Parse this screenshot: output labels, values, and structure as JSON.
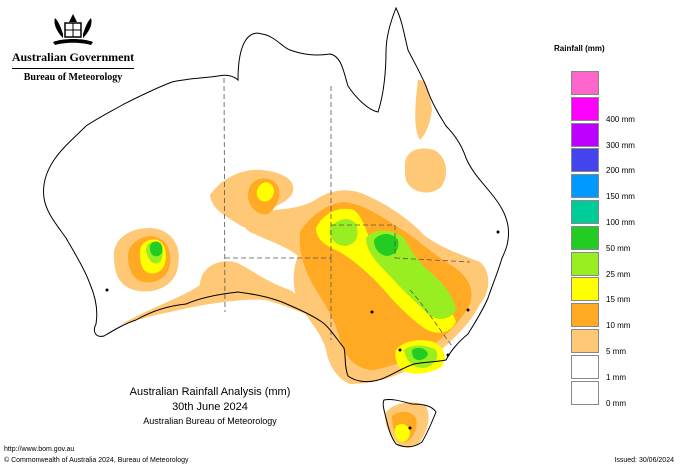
{
  "header": {
    "government": "Australian Government",
    "bureau": "Bureau of Meteorology"
  },
  "legend": {
    "title": "Rainfall (mm)",
    "items": [
      {
        "label": "",
        "color": "#ff66cc"
      },
      {
        "label": "400 mm",
        "color": "#ff00ff"
      },
      {
        "label": "300 mm",
        "color": "#bb00ff"
      },
      {
        "label": "200 mm",
        "color": "#4444ee"
      },
      {
        "label": "150 mm",
        "color": "#0099ff"
      },
      {
        "label": "100 mm",
        "color": "#00cc99"
      },
      {
        "label": "50 mm",
        "color": "#22cc22"
      },
      {
        "label": "25 mm",
        "color": "#99ee22"
      },
      {
        "label": "15 mm",
        "color": "#ffff00"
      },
      {
        "label": "10 mm",
        "color": "#ffaa22"
      },
      {
        "label": "5 mm",
        "color": "#ffc877"
      },
      {
        "label": "1 mm",
        "color": "#ffffff"
      },
      {
        "label": "0 mm",
        "color": "#ffffff"
      }
    ]
  },
  "caption": {
    "title": "Australian Rainfall Analysis (mm)",
    "date": "30th June 2024",
    "agency": "Australian Bureau of Meteorology"
  },
  "footer": {
    "url": "http://www.bom.gov.au",
    "copyright": "© Commonwealth of Australia 2024, Bureau of Meteorology",
    "issued": "Issued: 30/06/2024"
  },
  "colors": {
    "mm1": "#ffc877",
    "mm5": "#ffaa22",
    "mm10": "#ffff00",
    "mm15": "#99ee22",
    "mm25": "#22cc22"
  }
}
